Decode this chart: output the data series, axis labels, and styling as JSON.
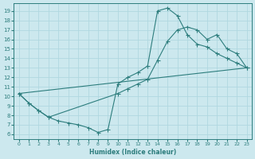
{
  "xlabel": "Humidex (Indice chaleur)",
  "bg_color": "#cce8ee",
  "line_color": "#2d7d7d",
  "grid_color": "#b0d8e0",
  "xlim": [
    -0.5,
    23.5
  ],
  "ylim": [
    5.5,
    19.8
  ],
  "xticks": [
    0,
    1,
    2,
    3,
    4,
    5,
    6,
    7,
    8,
    9,
    10,
    11,
    12,
    13,
    14,
    15,
    16,
    17,
    18,
    19,
    20,
    21,
    22,
    23
  ],
  "yticks": [
    6,
    7,
    8,
    9,
    10,
    11,
    12,
    13,
    14,
    15,
    16,
    17,
    18,
    19
  ],
  "line1_x": [
    0,
    1,
    2,
    3,
    4,
    5,
    6,
    7,
    8,
    9,
    10,
    11,
    12,
    13,
    14,
    15,
    16,
    17,
    18,
    19,
    20,
    21,
    22,
    23
  ],
  "line1_y": [
    10.3,
    9.3,
    8.5,
    7.8,
    7.4,
    7.2,
    7.0,
    6.7,
    6.2,
    6.5,
    11.3,
    12.0,
    12.5,
    13.2,
    19.0,
    19.3,
    18.5,
    16.5,
    15.5,
    15.2,
    14.5,
    14.0,
    13.5,
    13.0
  ],
  "line2_x": [
    0,
    1,
    2,
    3,
    10,
    11,
    12,
    13,
    14,
    15,
    16,
    17,
    18,
    19,
    20,
    21,
    22,
    23
  ],
  "line2_y": [
    10.3,
    9.3,
    8.5,
    7.8,
    10.3,
    10.8,
    11.3,
    11.8,
    13.8,
    15.8,
    17.0,
    17.3,
    17.0,
    16.0,
    16.5,
    15.0,
    14.5,
    13.0
  ],
  "line3_x": [
    0,
    23
  ],
  "line3_y": [
    10.3,
    13.0
  ],
  "marker_size": 1.8,
  "lw": 0.8
}
